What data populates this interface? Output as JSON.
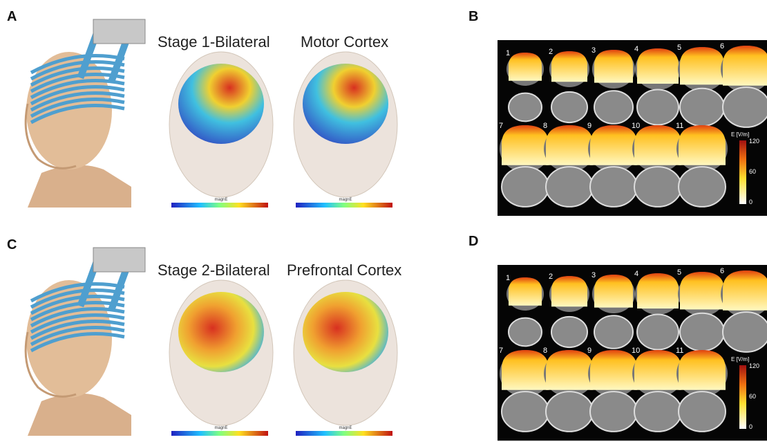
{
  "panels": [
    {
      "label": "A",
      "title_left": "Stage 1-Bilateral",
      "title_right": "Motor Cortex",
      "colorbar_label": "magnE"
    },
    {
      "label": "B",
      "slices": [
        "1",
        "2",
        "3",
        "4",
        "5",
        "6",
        "7",
        "8",
        "9",
        "10",
        "11"
      ],
      "colorbar": {
        "title": "E [V/m]",
        "ticks": [
          "120",
          "60",
          "0"
        ]
      }
    },
    {
      "label": "C",
      "title_left": "Stage 2-Bilateral",
      "title_right": "Prefrontal Cortex",
      "colorbar_label": "magnE"
    },
    {
      "label": "D",
      "slices": [
        "1",
        "2",
        "3",
        "4",
        "5",
        "6",
        "7",
        "8",
        "9",
        "10",
        "11"
      ],
      "colorbar": {
        "title": "E [V/m]",
        "ticks": [
          "120",
          "60",
          "0"
        ]
      }
    }
  ]
}
